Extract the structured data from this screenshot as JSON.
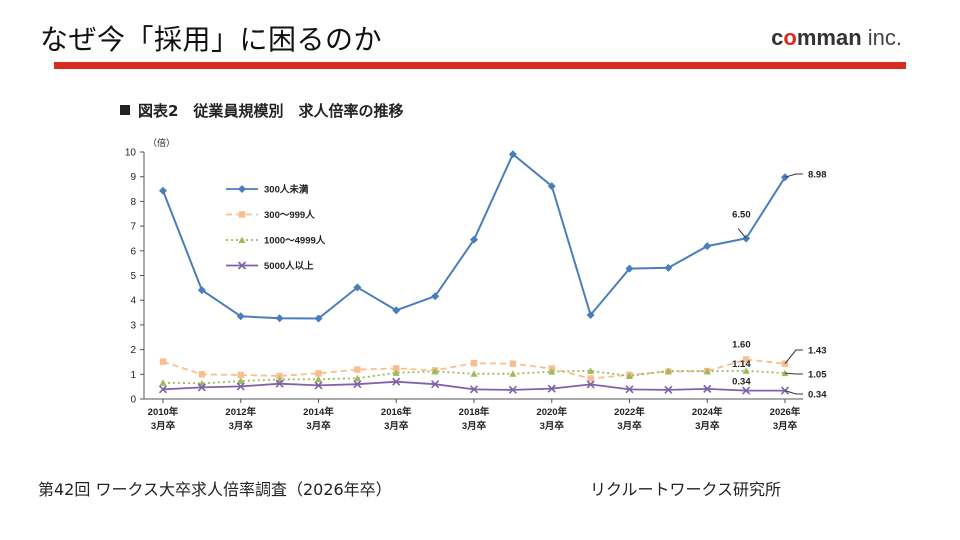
{
  "header": {
    "title": "なぜ今「採用」に困るのか",
    "logo": {
      "co": "c",
      "o": "o",
      "rest": "mman",
      "suffix": " inc."
    }
  },
  "figure": {
    "heading": "図表2　従業員規模別　求人倍率の推移"
  },
  "footer": {
    "source": "第42回 ワークス大卒求人倍率調査（2026年卒）",
    "org": "リクルートワークス研究所"
  },
  "chart_data": {
    "type": "line",
    "ylabel": "（倍）",
    "ylim": [
      0,
      10
    ],
    "yticks": [
      "0",
      "1",
      "2",
      "3",
      "4",
      "5",
      "6",
      "7",
      "8",
      "9",
      "10"
    ],
    "x": [
      2010,
      2011,
      2012,
      2013,
      2014,
      2015,
      2016,
      2017,
      2018,
      2019,
      2020,
      2021,
      2022,
      2023,
      2024,
      2025,
      2026
    ],
    "xtick_labels": [
      [
        "2010年",
        "3月卒"
      ],
      [
        "2012年",
        "3月卒"
      ],
      [
        "2014年",
        "3月卒"
      ],
      [
        "2016年",
        "3月卒"
      ],
      [
        "2018年",
        "3月卒"
      ],
      [
        "2020年",
        "3月卒"
      ],
      [
        "2022年",
        "3月卒"
      ],
      [
        "2024年",
        "3月卒"
      ],
      [
        "2026年",
        "3月卒"
      ]
    ],
    "xtick_years": [
      2010,
      2012,
      2014,
      2016,
      2018,
      2020,
      2022,
      2024,
      2026
    ],
    "legend_position": "top-left",
    "series": [
      {
        "name": "300人未満",
        "color": "#4a7ebb",
        "marker": "diamond",
        "dash": "",
        "values": [
          8.43,
          4.41,
          3.35,
          3.27,
          3.26,
          4.52,
          3.59,
          4.16,
          6.45,
          9.91,
          8.62,
          3.4,
          5.28,
          5.31,
          6.19,
          6.5,
          8.98
        ]
      },
      {
        "name": "300〜999人",
        "color": "#f9be8f",
        "marker": "square",
        "dash": "6,4",
        "values": [
          1.51,
          1.0,
          0.97,
          0.93,
          1.04,
          1.19,
          1.24,
          1.16,
          1.45,
          1.43,
          1.23,
          0.83,
          0.98,
          1.11,
          1.13,
          1.6,
          1.43
        ]
      },
      {
        "name": "1000〜4999人",
        "color": "#9bbb59",
        "marker": "triangle",
        "dash": "2,3",
        "values": [
          0.66,
          0.63,
          0.73,
          0.79,
          0.8,
          0.84,
          1.06,
          1.12,
          1.02,
          1.02,
          1.11,
          1.14,
          0.93,
          1.14,
          1.12,
          1.14,
          1.05
        ]
      },
      {
        "name": "5000人以上",
        "color": "#7f62a8",
        "marker": "x",
        "dash": "",
        "values": [
          0.39,
          0.47,
          0.51,
          0.62,
          0.55,
          0.6,
          0.7,
          0.6,
          0.39,
          0.37,
          0.42,
          0.59,
          0.39,
          0.37,
          0.41,
          0.34,
          0.34
        ]
      }
    ],
    "annotations": [
      {
        "text": "6.50",
        "x": 2025,
        "y": 6.5
      },
      {
        "text": "1.60",
        "x": 2025,
        "y": 1.6
      },
      {
        "text": "1.14",
        "x": 2025,
        "y": 1.14
      },
      {
        "text": "0.34",
        "x": 2025,
        "y": 0.34
      }
    ],
    "end_labels": [
      {
        "text": "8.98",
        "series": 0
      },
      {
        "text": "1.43",
        "series": 1
      },
      {
        "text": "1.05",
        "series": 2
      },
      {
        "text": "0.34",
        "series": 3
      }
    ]
  }
}
